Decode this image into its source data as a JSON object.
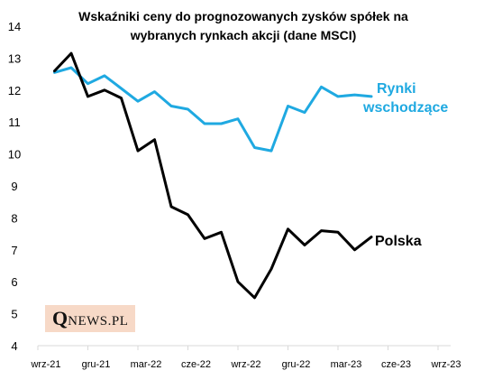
{
  "chart_data": {
    "type": "line",
    "title_lines": [
      "Wskaźniki ceny do prognozowanych  zysków spółek na",
      "wybranych rynkach akcji (dane MSCI)"
    ],
    "ylim": [
      4,
      14
    ],
    "yticks": [
      "4",
      "5",
      "6",
      "7",
      "8",
      "9",
      "10",
      "11",
      "12",
      "13",
      "14"
    ],
    "xlim": [
      0,
      24
    ],
    "xticks": [
      {
        "x": 0,
        "label": "wrz-21"
      },
      {
        "x": 3,
        "label": "gru-21"
      },
      {
        "x": 6,
        "label": "mar-22"
      },
      {
        "x": 9,
        "label": "cze-22"
      },
      {
        "x": 12,
        "label": "wrz-22"
      },
      {
        "x": 15,
        "label": "gru-22"
      },
      {
        "x": 18,
        "label": "mar-23"
      },
      {
        "x": 21,
        "label": "cze-23"
      },
      {
        "x": 24,
        "label": "wrz-23"
      }
    ],
    "grid": false,
    "series": [
      {
        "name": "Rynki wschodzące",
        "label_lines": [
          "Rynki",
          "wschodzące"
        ],
        "color": "#1fa9e1",
        "values": [
          12.55,
          12.7,
          12.2,
          12.45,
          12.05,
          11.65,
          11.95,
          11.5,
          11.4,
          10.95,
          10.95,
          11.1,
          10.2,
          10.1,
          11.5,
          11.3,
          12.1,
          11.8,
          11.85,
          11.8
        ]
      },
      {
        "name": "Polska",
        "label_lines": [
          "Polska"
        ],
        "color": "#000000",
        "values": [
          12.6,
          13.15,
          11.8,
          12.0,
          11.75,
          10.1,
          10.45,
          8.35,
          8.1,
          7.35,
          7.55,
          6.0,
          5.5,
          6.4,
          7.65,
          7.15,
          7.6,
          7.55,
          7.0,
          7.4
        ]
      }
    ]
  },
  "watermark": {
    "q": "Q",
    "rest": "NEWS.PL"
  }
}
